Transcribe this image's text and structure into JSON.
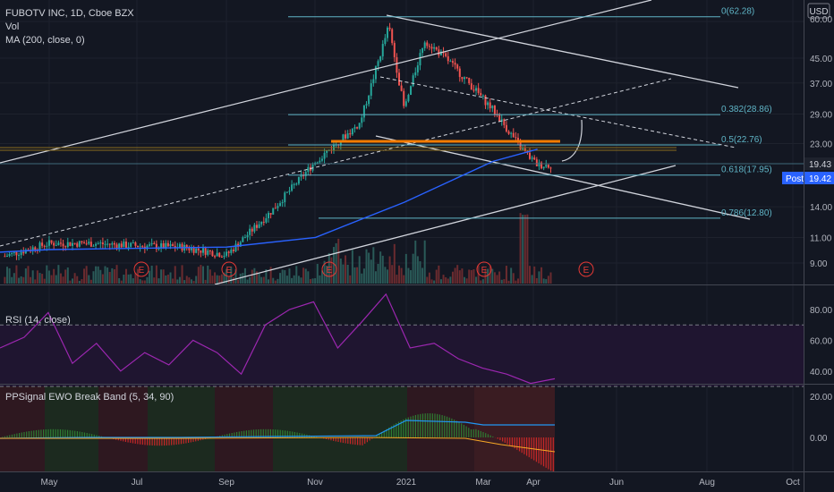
{
  "header": {
    "title": "FUBOTV INC, 1D, Cboe BZX",
    "vol": "Vol",
    "ma": "MA (200, close, 0)"
  },
  "currency": "USD",
  "price_axis": [
    "60.00",
    "45.00",
    "37.00",
    "29.00",
    "23.00",
    "19.43",
    "19.42",
    "14.00",
    "11.00",
    "9.00"
  ],
  "last_price": "19.43",
  "post_label": "Post",
  "post_price": "19.42",
  "fib": [
    "0(62.28)",
    "0.382(28.86)",
    "0.5(22.76)",
    "0.618(17.95)",
    "0.786(12.80)"
  ],
  "earnings_marker": "E",
  "rsi": {
    "title": "RSI (14, close)",
    "ticks": [
      "80.00",
      "60.00",
      "40.00"
    ]
  },
  "ewo": {
    "title": "PPSignal EWO Break Band (5, 34, 90)",
    "ticks": [
      "20.00",
      "0.00"
    ]
  },
  "time_axis": [
    "May",
    "Jul",
    "Sep",
    "Nov",
    "2021",
    "Mar",
    "Apr",
    "Jun",
    "Aug",
    "Oct"
  ],
  "colors": {
    "background": "#131722",
    "up": "#26a69a",
    "down": "#ef5350",
    "ma": "#2962ff",
    "fib": "#5fb4c6",
    "rsi": "#9c27b0",
    "support": "#f57c00"
  },
  "chart_data": {
    "type": "candlestick",
    "symbol": "FUBOTV INC",
    "timeframe": "1D",
    "price_scale": "log",
    "price_axis_ticks": [
      60,
      45,
      37,
      29,
      23,
      14,
      11,
      9
    ],
    "close_points": [
      {
        "x": "Apr 2020",
        "y": 9.5
      },
      {
        "x": "May 2020",
        "y": 10.5
      },
      {
        "x": "Jun 2020",
        "y": 10.5
      },
      {
        "x": "Jul 2020",
        "y": 10.3
      },
      {
        "x": "Aug 2020",
        "y": 10.2
      },
      {
        "x": "Sep 2020",
        "y": 9.6
      },
      {
        "x": "Oct 2020",
        "y": 13.5
      },
      {
        "x": "Nov 2020",
        "y": 20.0
      },
      {
        "x": "Dec 2020",
        "y": 27.0
      },
      {
        "x": "late Dec 2020",
        "y": 58.0
      },
      {
        "x": "Jan 2021",
        "y": 30.0
      },
      {
        "x": "mid Jan 2021",
        "y": 52.0
      },
      {
        "x": "Feb 2021",
        "y": 44.0
      },
      {
        "x": "Mar 2021",
        "y": 30.0
      },
      {
        "x": "late Mar 2021",
        "y": 22.0
      },
      {
        "x": "Apr 2021",
        "y": 19.43
      }
    ],
    "fibonacci": [
      {
        "level": 0,
        "price": 62.28
      },
      {
        "level": 0.382,
        "price": 28.86
      },
      {
        "level": 0.5,
        "price": 22.76
      },
      {
        "level": 0.618,
        "price": 17.95
      },
      {
        "level": 0.786,
        "price": 12.8
      }
    ],
    "ma200_points": [
      {
        "x": "May 2020",
        "y": 10.0
      },
      {
        "x": "Sep 2020",
        "y": 10.2
      },
      {
        "x": "Nov 2020",
        "y": 11.0
      },
      {
        "x": "Jan 2021",
        "y": 14.5
      },
      {
        "x": "Mar 2021",
        "y": 20.0
      },
      {
        "x": "Apr 2021",
        "y": 22.0
      }
    ],
    "earnings_dates": [
      "Jun 2020",
      "Aug 2020",
      "Nov 2020",
      "Mar 2021",
      "May 2021"
    ],
    "rsi": {
      "series": [
        55,
        62,
        78,
        45,
        58,
        40,
        52,
        44,
        60,
        52,
        38,
        70,
        80,
        85,
        55,
        72,
        90,
        55,
        58,
        48,
        42,
        38,
        32,
        35
      ],
      "levels": [
        70,
        30
      ],
      "axis_ticks": [
        80,
        60,
        40
      ]
    },
    "ewo": {
      "axis_ticks": [
        20,
        0
      ]
    },
    "last_price": 19.43,
    "post_price": 19.42
  }
}
